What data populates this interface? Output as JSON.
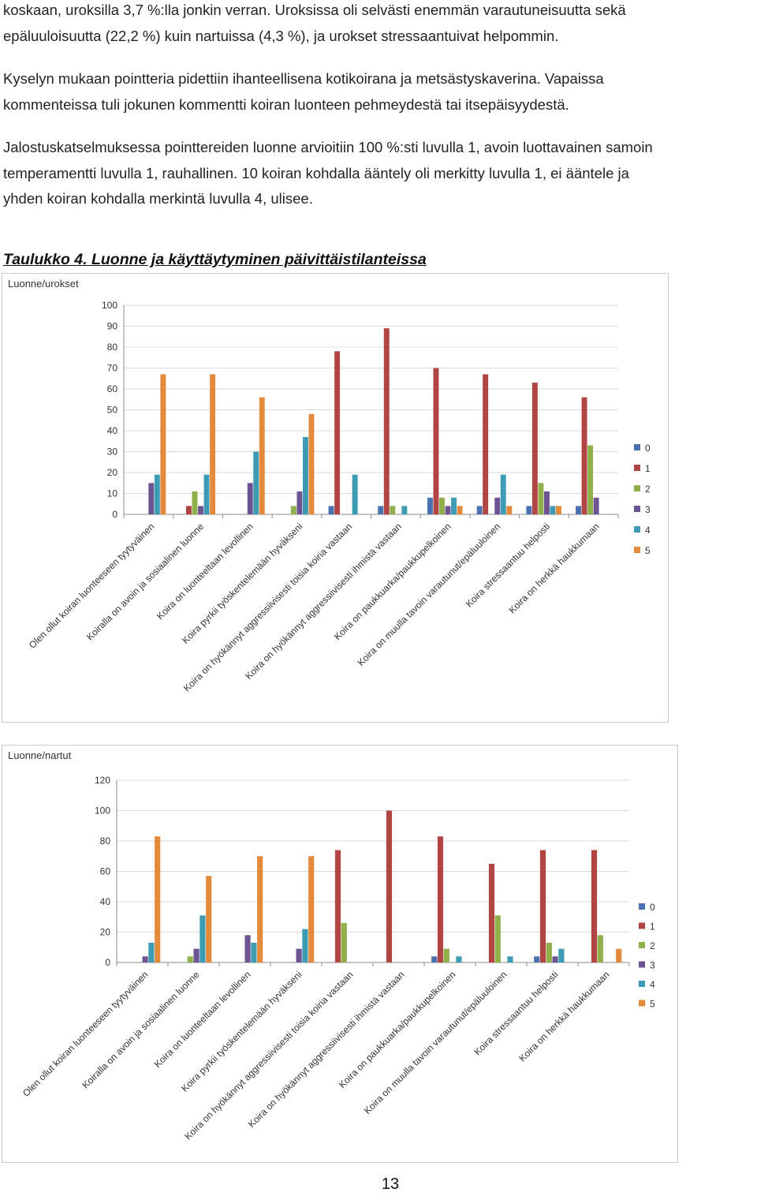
{
  "text": {
    "p0_lines": [
      "koskaan, uroksilla 3,7 %:lla jonkin verran. Uroksissa oli selvästi enemmän varautuneisuutta sekä",
      "epäluuloisuutta (22,2 %) kuin nartuissa (4,3 %), ja urokset stressaantuivat helpommin."
    ],
    "p1_lines": [
      "Kyselyn mukaan pointteria pidettiin ihanteellisena kotikoirana ja metsästyskaverina. Vapaissa",
      "kommenteissa tuli jokunen kommentti koiran luonteen pehmeydestä tai itsepäisyydestä."
    ],
    "p2_lines": [
      "Jalostuskatselmuksessa pointtereiden luonne arvioitiin 100 %:sti luvulla 1, avoin luottavainen samoin",
      "temperamentti  luvulla 1, rauhallinen. 10 koiran kohdalla ääntely oli merkitty luvulla 1, ei ääntele ja",
      "yhden koiran kohdalla merkintä luvulla 4, ulisee."
    ],
    "caption": "Taulukko 4. Luonne ja käyttäytyminen päivittäistilanteissa",
    "page_number": "13"
  },
  "chart_data": [
    {
      "type": "bar",
      "title": "Luonne/urokset",
      "categories": [
        "Olen ollut koiran luonteeseen tyytyväinen",
        "Koiralla on avoin ja sosiaalinen luonne",
        "Koira on luonteeltaan levollinen",
        "Koira pyrkii työskentelemään hyväkseni",
        "Koira on hyökännyt aggressiivisesti toisia koiria vastaan",
        "Koira on hyökännyt aggressiivisesti ihmistä vastaan",
        "Koira on paukkuarka/paukkupelkoinen",
        "Koira on muulla tavoin varautunut/epäluuloinen",
        "Koira stressaantuu helposti",
        "Koira on herkkä haukkumaan"
      ],
      "series": [
        {
          "name": "0",
          "color": "#4a72b0",
          "values": [
            0,
            0,
            0,
            0,
            4,
            4,
            8,
            4,
            4,
            4
          ]
        },
        {
          "name": "1",
          "color": "#b04543",
          "values": [
            0,
            4,
            0,
            0,
            78,
            89,
            70,
            67,
            63,
            56
          ]
        },
        {
          "name": "2",
          "color": "#8fb04b",
          "values": [
            0,
            11,
            0,
            4,
            0,
            4,
            8,
            0,
            15,
            33
          ]
        },
        {
          "name": "3",
          "color": "#6e5393",
          "values": [
            15,
            4,
            15,
            11,
            0,
            0,
            4,
            8,
            11,
            8
          ]
        },
        {
          "name": "4",
          "color": "#3d9cb4",
          "values": [
            19,
            19,
            30,
            37,
            19,
            4,
            8,
            19,
            4,
            0
          ]
        },
        {
          "name": "5",
          "color": "#e48a3c",
          "values": [
            67,
            67,
            56,
            48,
            0,
            0,
            4,
            4,
            4,
            0
          ]
        }
      ],
      "yticks": [
        0,
        10,
        20,
        30,
        40,
        50,
        60,
        70,
        80,
        90,
        100
      ],
      "ylim": [
        0,
        100
      ],
      "grid": true,
      "legend": "right"
    },
    {
      "type": "bar",
      "title": "Luonne/nartut",
      "categories": [
        "Olen ollut koiran luonteeseen tyytyväinen",
        "Koiralla on avoin ja sosiaalinen luonne",
        "Koira on luonteeltaan levollinen",
        "Koira pyrkii työskentelemään hyväkseni",
        "Koira on hyökännyt aggressiivisesti toisia koiria vastaan",
        "Koira on hyökännyt aggressiivisesti ihmistä vastaan",
        "Koira on paukkuarka/paukkupelkoinen",
        "Koira on muulla tavoin varautunut/epäluuloinen",
        "Koira stressaantuu helposti",
        "Koira on herkkä haukkumaan"
      ],
      "series": [
        {
          "name": "0",
          "color": "#4a72b0",
          "values": [
            0,
            0,
            0,
            0,
            0,
            0,
            4,
            0,
            4,
            0
          ]
        },
        {
          "name": "1",
          "color": "#b04543",
          "values": [
            0,
            0,
            0,
            0,
            74,
            100,
            83,
            65,
            74,
            74
          ]
        },
        {
          "name": "2",
          "color": "#8fb04b",
          "values": [
            0,
            4,
            0,
            0,
            26,
            0,
            9,
            31,
            13,
            18
          ]
        },
        {
          "name": "3",
          "color": "#6e5393",
          "values": [
            4,
            9,
            18,
            9,
            0,
            0,
            0,
            0,
            4,
            0
          ]
        },
        {
          "name": "4",
          "color": "#3d9cb4",
          "values": [
            13,
            31,
            13,
            22,
            0,
            0,
            4,
            4,
            9,
            0
          ]
        },
        {
          "name": "5",
          "color": "#e48a3c",
          "values": [
            83,
            57,
            70,
            70,
            0,
            0,
            0,
            0,
            0,
            9
          ]
        }
      ],
      "yticks": [
        0,
        20,
        40,
        60,
        80,
        100,
        120
      ],
      "ylim": [
        0,
        120
      ],
      "grid": true,
      "legend": "right"
    }
  ]
}
